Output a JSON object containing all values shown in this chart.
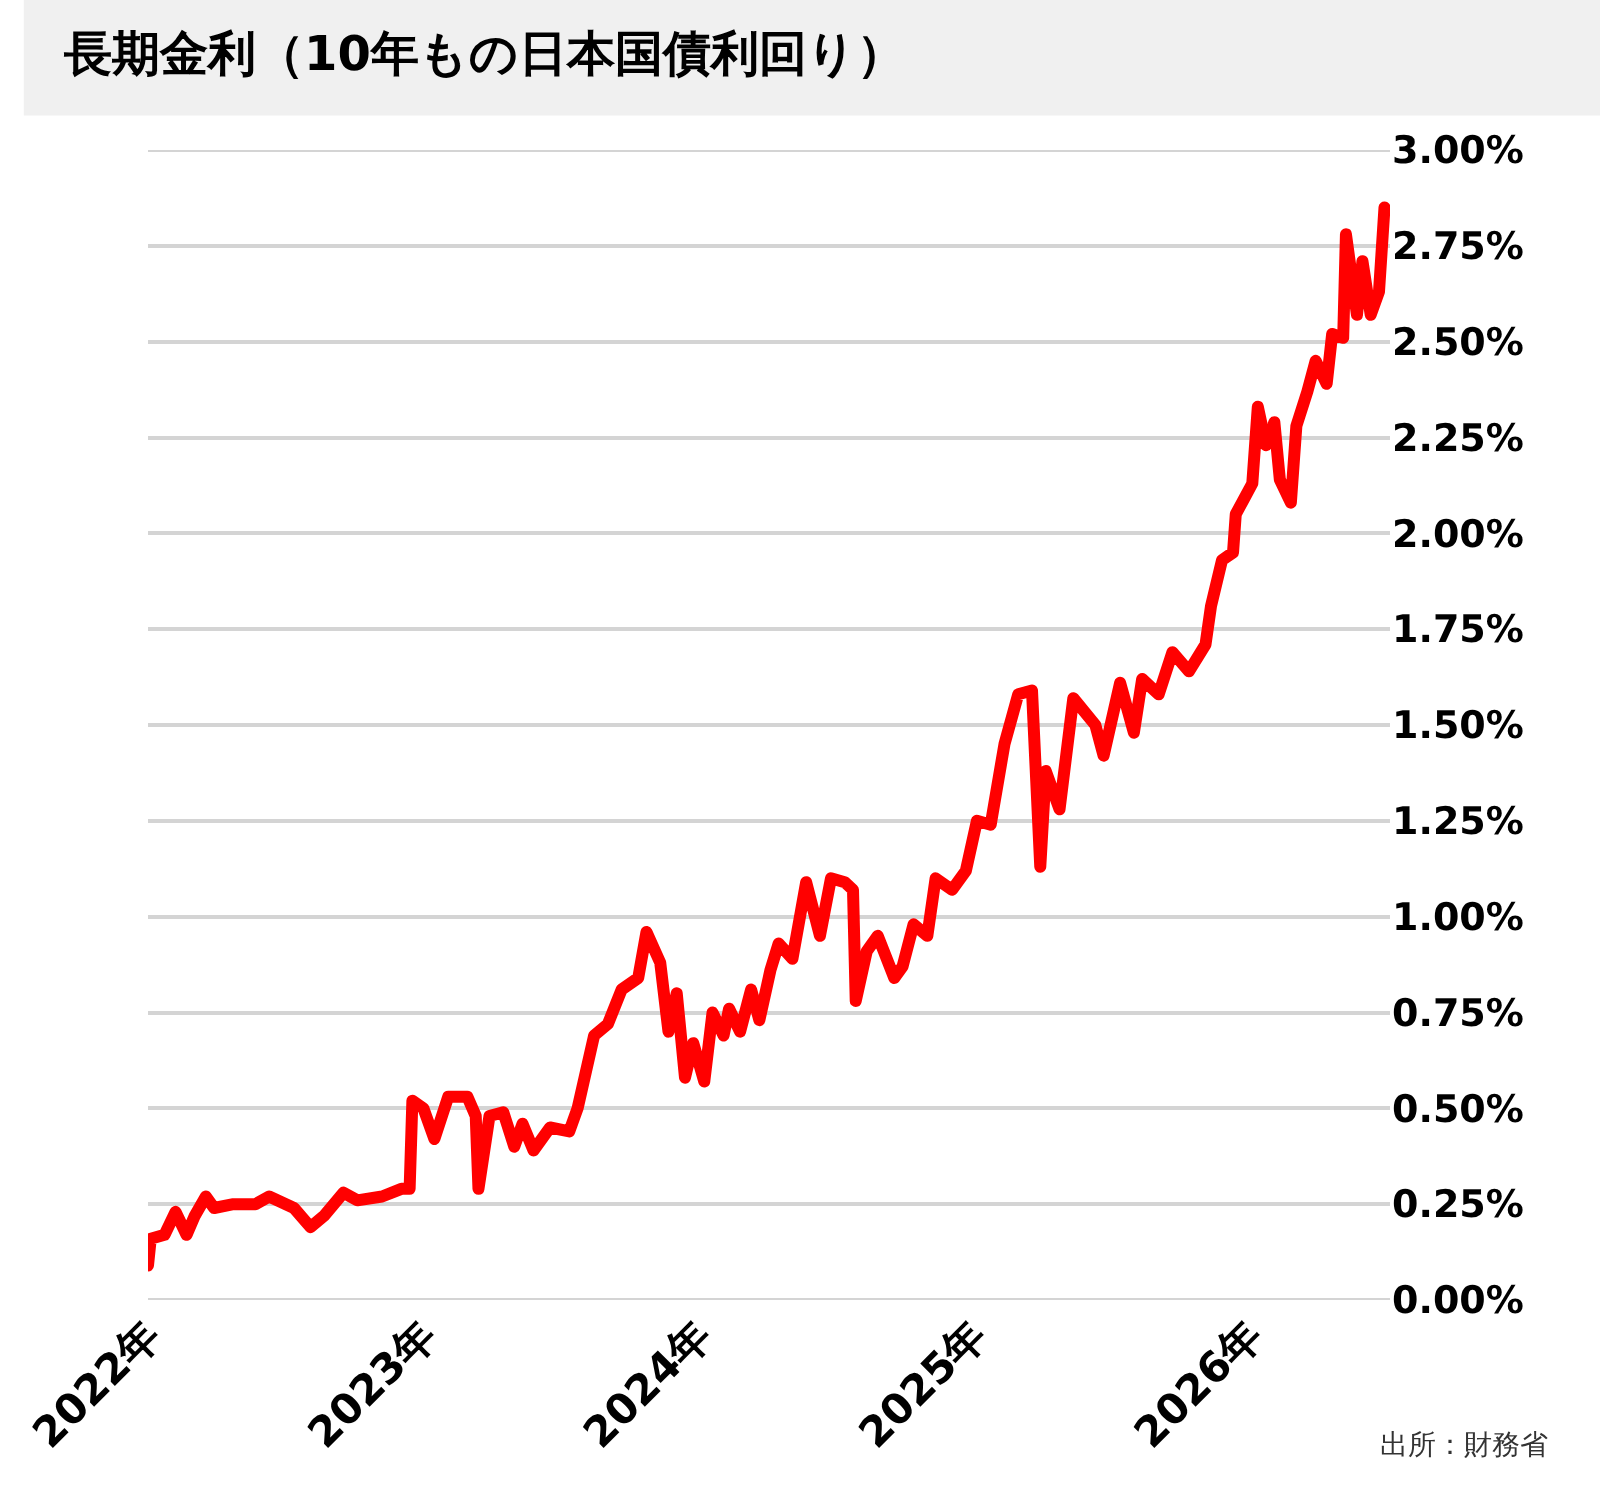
{
  "chart_data": {
    "type": "line",
    "title": "長期金利（10年もの日本国債利回り）",
    "annotations": [
      "出所：財務省"
    ],
    "x": [
      2022.0,
      2022.01,
      2022.06,
      2022.1,
      2022.14,
      2022.17,
      2022.21,
      2022.24,
      2022.31,
      2022.39,
      2022.44,
      2022.53,
      2022.59,
      2022.64,
      2022.71,
      2022.76,
      2022.85,
      2022.92,
      2022.95,
      2022.96,
      2023.0,
      2023.04,
      2023.09,
      2023.16,
      2023.19,
      2023.2,
      2023.24,
      2023.29,
      2023.33,
      2023.36,
      2023.4,
      2023.46,
      2023.53,
      2023.56,
      2023.62,
      2023.67,
      2023.72,
      2023.78,
      2023.81,
      2023.86,
      2023.89,
      2023.92,
      2023.95,
      2023.98,
      2024.02,
      2024.05,
      2024.09,
      2024.11,
      2024.15,
      2024.19,
      2024.22,
      2024.26,
      2024.29,
      2024.34,
      2024.39,
      2024.44,
      2024.48,
      2024.53,
      2024.56,
      2024.57,
      2024.61,
      2024.65,
      2024.71,
      2024.74,
      2024.78,
      2024.83,
      2024.86,
      2024.92,
      2024.97,
      2025.01,
      2025.06,
      2025.11,
      2025.16,
      2025.21,
      2025.24,
      2025.26,
      2025.31,
      2025.36,
      2025.44,
      2025.47,
      2025.53,
      2025.58,
      2025.61,
      2025.67,
      2025.72,
      2025.78,
      2025.84,
      2025.86,
      2025.9,
      2025.94,
      2025.95,
      2025.98,
      2026.01,
      2026.03,
      2026.06,
      2026.09,
      2026.11,
      2026.15,
      2026.17,
      2026.21,
      2026.24,
      2026.28,
      2026.3,
      2026.34,
      2026.35,
      2026.39,
      2026.41,
      2026.44,
      2026.47,
      2026.49
    ],
    "series": [
      {
        "color": "#ff0000",
        "values": [
          0.09,
          0.16,
          0.17,
          0.23,
          0.17,
          0.22,
          0.27,
          0.24,
          0.25,
          0.25,
          0.27,
          0.24,
          0.19,
          0.22,
          0.28,
          0.26,
          0.27,
          0.29,
          0.29,
          0.52,
          0.5,
          0.42,
          0.53,
          0.53,
          0.48,
          0.29,
          0.48,
          0.49,
          0.4,
          0.46,
          0.39,
          0.45,
          0.44,
          0.5,
          0.69,
          0.72,
          0.81,
          0.84,
          0.96,
          0.88,
          0.7,
          0.8,
          0.58,
          0.67,
          0.57,
          0.75,
          0.69,
          0.76,
          0.7,
          0.81,
          0.73,
          0.86,
          0.93,
          0.89,
          1.09,
          0.95,
          1.1,
          1.09,
          1.07,
          0.78,
          0.91,
          0.95,
          0.84,
          0.87,
          0.98,
          0.95,
          1.1,
          1.07,
          1.12,
          1.25,
          1.24,
          1.45,
          1.58,
          1.59,
          1.13,
          1.38,
          1.28,
          1.57,
          1.5,
          1.42,
          1.61,
          1.48,
          1.62,
          1.58,
          1.69,
          1.64,
          1.71,
          1.81,
          1.93,
          1.95,
          2.05,
          2.09,
          2.13,
          2.33,
          2.23,
          2.29,
          2.14,
          2.08,
          2.28,
          2.37,
          2.45,
          2.39,
          2.52,
          2.51,
          2.78,
          2.57,
          2.71,
          2.57,
          2.63,
          2.85
        ]
      }
    ],
    "xlim": [
      2022,
      2026.51
    ],
    "xticks": [
      {
        "value": 2022,
        "label": "2022年"
      },
      {
        "value": 2023,
        "label": "2023年"
      },
      {
        "value": 2024,
        "label": "2024年"
      },
      {
        "value": 2025,
        "label": "2025年"
      },
      {
        "value": 2026,
        "label": "2026年"
      }
    ],
    "ylim": [
      0,
      3
    ],
    "yticks": [
      {
        "value": 0,
        "label": "0.00%"
      },
      {
        "value": 0.25,
        "label": "0.25%"
      },
      {
        "value": 0.5,
        "label": "0.50%"
      },
      {
        "value": 0.75,
        "label": "0.75%"
      },
      {
        "value": 1,
        "label": "1.00%"
      },
      {
        "value": 1.25,
        "label": "1.25%"
      },
      {
        "value": 1.5,
        "label": "1.50%"
      },
      {
        "value": 1.75,
        "label": "1.75%"
      },
      {
        "value": 2,
        "label": "2.00%"
      },
      {
        "value": 2.25,
        "label": "2.25%"
      },
      {
        "value": 2.5,
        "label": "2.50%"
      },
      {
        "value": 2.75,
        "label": "2.75%"
      },
      {
        "value": 3,
        "label": "3.00%"
      }
    ],
    "grid": "y",
    "marker": "none",
    "line_style": "solid"
  }
}
